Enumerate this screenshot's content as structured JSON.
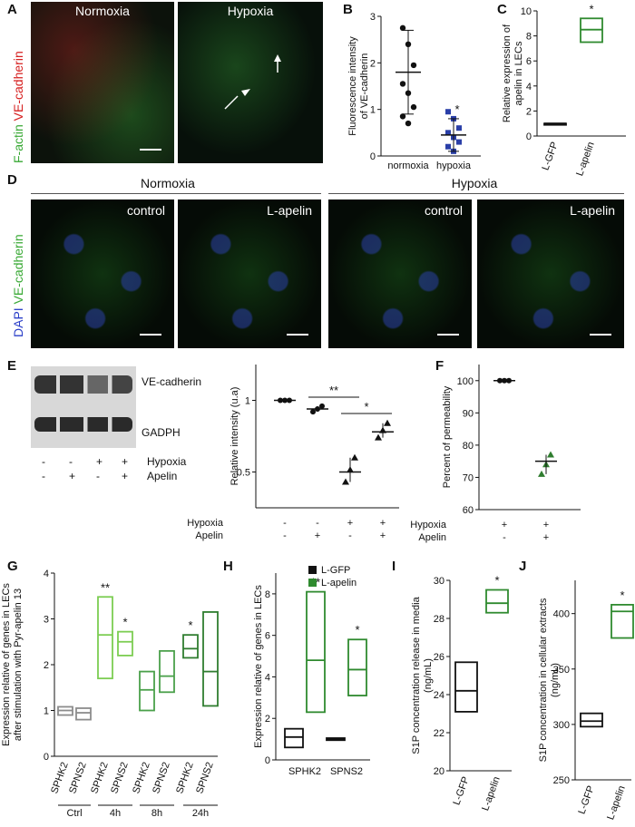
{
  "panels": {
    "A": {
      "label": "A",
      "titles": [
        "Normoxia",
        "Hypoxia"
      ],
      "ylabel_green": "F-actin",
      "ylabel_red": "VE-cadherin"
    },
    "B": {
      "label": "B"
    },
    "C": {
      "label": "C"
    },
    "D": {
      "label": "D",
      "group_titles": [
        "Normoxia",
        "Hypoxia"
      ],
      "panel_titles": [
        "control",
        "L-apelin",
        "control",
        "L-apelin"
      ],
      "ylabel_blue": "DAPI",
      "ylabel_green": "VE-cadherin"
    },
    "E": {
      "label": "E",
      "blot_labels": [
        "VE-cadherin",
        "GADPH"
      ],
      "row_labels": [
        "Hypoxia",
        "Apelin"
      ],
      "rows": [
        [
          "-",
          "-",
          "+",
          "+"
        ],
        [
          "-",
          "+",
          "-",
          "+"
        ]
      ]
    },
    "F": {
      "label": "F"
    },
    "G": {
      "label": "G"
    },
    "H": {
      "label": "H"
    },
    "I": {
      "label": "I"
    },
    "J": {
      "label": "J"
    }
  },
  "chart_data": [
    {
      "id": "B",
      "type": "scatter",
      "ylabel": "Fluorescence intensity of VE-cadherin",
      "categories": [
        "normoxia",
        "hypoxia"
      ],
      "ylim": [
        0,
        3
      ],
      "yticks": [
        0,
        1,
        2,
        3
      ],
      "series": [
        {
          "values": [
            [
              2.75,
              2.4,
              1.95,
              1.55,
              1.35,
              1.05,
              0.85,
              0.7
            ],
            [
              0.95,
              0.8,
              0.6,
              0.5,
              0.4,
              0.3,
              0.2,
              0.1
            ]
          ]
        }
      ],
      "means": [
        1.8,
        0.45
      ],
      "sd_low": [
        0.9,
        0.1
      ],
      "sd_high": [
        2.7,
        0.8
      ],
      "significance": [
        "",
        "*"
      ]
    },
    {
      "id": "C",
      "type": "box",
      "ylabel": "Relative expression of apelin in LECs",
      "categories": [
        "L-GFP",
        "L-apelin"
      ],
      "ylim": [
        0,
        10
      ],
      "yticks": [
        0,
        2,
        4,
        6,
        8,
        10
      ],
      "boxes": [
        [
          1,
          1,
          1
        ],
        [
          7.5,
          8.5,
          9.4
        ]
      ],
      "significance": [
        "",
        "*"
      ]
    },
    {
      "id": "E",
      "type": "scatter",
      "ylabel": "Relative intensity (u.a)",
      "ylim": [
        0.25,
        1.25
      ],
      "yticks": [
        0.5,
        1
      ],
      "means": [
        1.0,
        0.94,
        0.5,
        0.78
      ],
      "sd_low": [
        1.0,
        0.92,
        0.43,
        0.74
      ],
      "sd_high": [
        1.0,
        0.96,
        0.6,
        0.84
      ],
      "row_labels": [
        "Hypoxia",
        "Apelin"
      ],
      "rows": [
        [
          "-",
          "-",
          "+",
          "+"
        ],
        [
          "-",
          "+",
          "-",
          "+"
        ]
      ],
      "significance": [
        {
          "from": 1,
          "to": 2,
          "mark": "**"
        },
        {
          "from": 2,
          "to": 3,
          "mark": "*"
        }
      ]
    },
    {
      "id": "F",
      "type": "scatter",
      "ylabel": "Percent of permeability",
      "ylim": [
        60,
        105
      ],
      "yticks": [
        60,
        70,
        80,
        90,
        100
      ],
      "means": [
        100,
        75
      ],
      "sd_low": [
        100,
        71
      ],
      "sd_high": [
        100,
        77
      ],
      "row_labels": [
        "Hypoxia",
        "Apelin"
      ],
      "rows": [
        [
          "+",
          "+"
        ],
        [
          "-",
          "+"
        ]
      ]
    },
    {
      "id": "G",
      "type": "box",
      "ylabel": "Expression relative of genes in LECs after stimulation with Pyr-apelin 13",
      "ylim": [
        0,
        4
      ],
      "yticks": [
        0,
        1,
        2,
        3,
        4
      ],
      "categories": [
        "SPHK2",
        "SPNS2",
        "SPHK2",
        "SPNS2",
        "SPHK2",
        "SPNS2",
        "SPHK2",
        "SPNS2"
      ],
      "groups": [
        "Ctrl",
        "4h",
        "8h",
        "24h"
      ],
      "boxes": [
        [
          0.9,
          1.0,
          1.08
        ],
        [
          0.8,
          0.95,
          1.05
        ],
        [
          1.7,
          2.65,
          3.48
        ],
        [
          2.2,
          2.5,
          2.72
        ],
        [
          1.0,
          1.45,
          1.85
        ],
        [
          1.4,
          1.75,
          2.3
        ],
        [
          2.15,
          2.35,
          2.65
        ],
        [
          1.1,
          1.85,
          3.15
        ]
      ],
      "colors": [
        "#8c8c8c",
        "#8c8c8c",
        "#7ccd52",
        "#7ccd52",
        "#4aa04a",
        "#4aa04a",
        "#2f7d2f",
        "#2f7d2f"
      ],
      "significance": [
        "",
        "",
        "**",
        "*",
        "",
        "",
        "*",
        ""
      ]
    },
    {
      "id": "H",
      "type": "box",
      "ylabel": "Expression relative of genes in LECs",
      "ylim": [
        0,
        9
      ],
      "yticks": [
        0,
        2,
        4,
        6,
        8
      ],
      "categories": [
        "SPHK2",
        "SPNS2"
      ],
      "legend": [
        "L-GFP",
        "L-apelin"
      ],
      "boxes": [
        [
          0.6,
          1.1,
          1.5
        ],
        [
          2.3,
          4.8,
          8.1
        ],
        [
          0.95,
          1.0,
          1.05
        ],
        [
          3.1,
          4.35,
          5.8
        ]
      ],
      "significance": [
        "",
        "**",
        "",
        "*"
      ]
    },
    {
      "id": "I",
      "type": "box",
      "ylabel": "S1P concentration release in media (ng/mL)",
      "ylim": [
        20,
        30
      ],
      "yticks": [
        20,
        22,
        24,
        26,
        28,
        30
      ],
      "categories": [
        "L-GFP",
        "L-apelin"
      ],
      "boxes": [
        [
          23.1,
          24.2,
          25.7
        ],
        [
          28.3,
          28.8,
          29.5
        ]
      ],
      "significance": [
        "",
        "*"
      ]
    },
    {
      "id": "J",
      "type": "box",
      "ylabel": "S1P concentration in cellular extracts (ng/mL)",
      "ylim": [
        250,
        430
      ],
      "yticks": [
        250,
        300,
        350,
        400
      ],
      "categories": [
        "L-GFP",
        "L-apelin"
      ],
      "boxes": [
        [
          298,
          303,
          310
        ],
        [
          378,
          402,
          408
        ]
      ],
      "significance": [
        "",
        "*"
      ]
    }
  ]
}
